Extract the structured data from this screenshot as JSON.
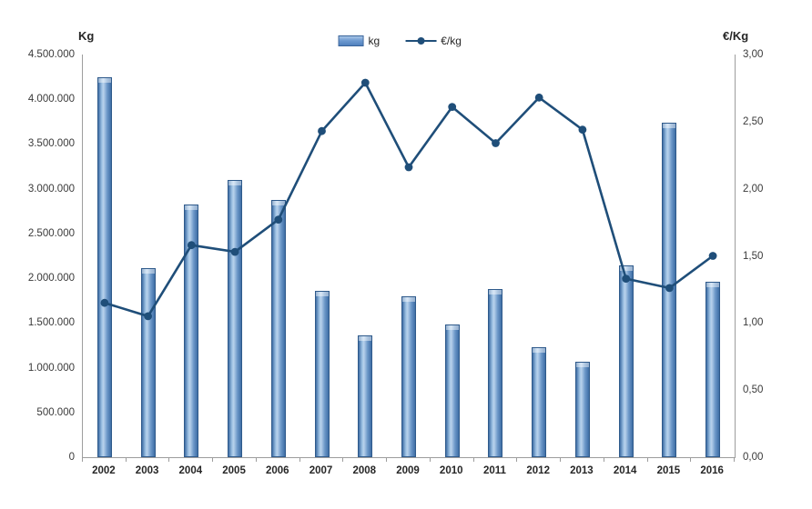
{
  "chart": {
    "left_axis_title": "Kg",
    "right_axis_title": "€/Kg",
    "legend": {
      "bar_label": "kg",
      "line_label": "€/kg"
    }
  },
  "chart_data": {
    "type": "bar",
    "subtype": "combo-bar-line",
    "title": "",
    "categories": [
      "2002",
      "2003",
      "2004",
      "2005",
      "2006",
      "2007",
      "2008",
      "2009",
      "2010",
      "2011",
      "2012",
      "2013",
      "2014",
      "2015",
      "2016"
    ],
    "series": [
      {
        "name": "kg",
        "type": "bar",
        "axis": "left",
        "color": "#4f81bd",
        "values": [
          4250000,
          2110000,
          2820000,
          3100000,
          2870000,
          1860000,
          1360000,
          1800000,
          1480000,
          1880000,
          1230000,
          1070000,
          2140000,
          3740000,
          1960000
        ]
      },
      {
        "name": "€/kg",
        "type": "line",
        "axis": "right",
        "color": "#1f4e79",
        "values": [
          1.15,
          1.05,
          1.58,
          1.53,
          1.77,
          2.43,
          2.79,
          2.16,
          2.61,
          2.34,
          2.68,
          2.44,
          1.33,
          1.26,
          1.5
        ]
      }
    ],
    "left_axis": {
      "label": "Kg",
      "min": 0,
      "max": 4500000,
      "step": 500000,
      "tick_labels": [
        "4.500.000",
        "4.000.000",
        "3.500.000",
        "3.000.000",
        "2.500.000",
        "2.000.000",
        "1.500.000",
        "1.000.000",
        "500.000",
        "0"
      ]
    },
    "right_axis": {
      "label": "€/Kg",
      "min": 0,
      "max": 3,
      "step": 0.5,
      "tick_labels": [
        "3,00",
        "2,50",
        "2,00",
        "1,50",
        "1,00",
        "0,50",
        "0,00"
      ]
    },
    "grid": false,
    "legend_position": "top-center"
  }
}
